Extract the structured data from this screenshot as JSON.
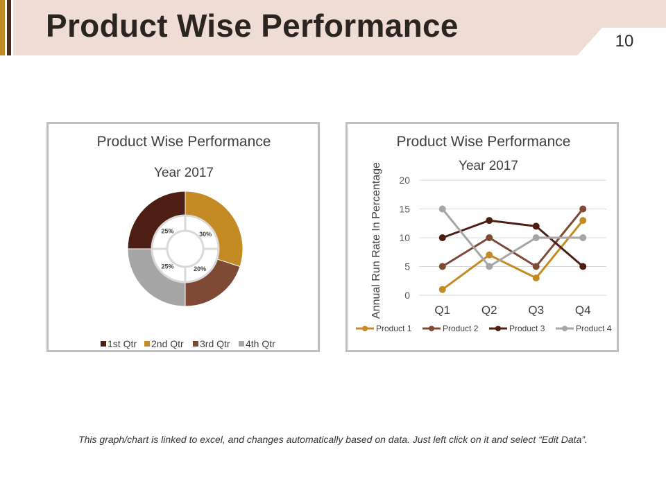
{
  "slide": {
    "title": "Product Wise Performance",
    "page_number": "10",
    "footer_note": "This graph/chart is linked to excel, and changes automatically based on data. Just left click on it and select “Edit Data”.",
    "colors": {
      "header_band": "#efdcd5",
      "accent_dark": "#4d2b1a",
      "accent_gold": "#c48a24"
    }
  },
  "chart_data": [
    {
      "type": "pie",
      "variant": "doughnut",
      "title": "Product Wise Performance",
      "subtitle": "Year 2017",
      "categories": [
        "1st Qtr",
        "2nd Qtr",
        "3rd Qtr",
        "4th Qtr"
      ],
      "values": [
        25,
        30,
        20,
        25
      ],
      "labels": [
        "25%",
        "30%",
        "20%",
        "25%"
      ],
      "colors": [
        "#4d1f14",
        "#c48a24",
        "#7e4a36",
        "#a6a6a6"
      ],
      "legend": "bottom"
    },
    {
      "type": "line",
      "title": "Product Wise Performance",
      "subtitle": "Year 2017",
      "categories": [
        "Q1",
        "Q2",
        "Q3",
        "Q4"
      ],
      "ylabel": "Annual Run Rate In Percentage",
      "ylim": [
        0,
        20
      ],
      "yticks": [
        0,
        5,
        10,
        15,
        20
      ],
      "grid": true,
      "legend": "bottom",
      "series": [
        {
          "name": "Product 1",
          "values": [
            1,
            7,
            3,
            13
          ],
          "color": "#c48a24"
        },
        {
          "name": "Product 2",
          "values": [
            5,
            10,
            5,
            15
          ],
          "color": "#7e4a36"
        },
        {
          "name": "Product 3",
          "values": [
            10,
            13,
            12,
            5
          ],
          "color": "#4d1f14"
        },
        {
          "name": "Product 4",
          "values": [
            15,
            5,
            10,
            10
          ],
          "color": "#a6a6a6"
        }
      ]
    }
  ]
}
